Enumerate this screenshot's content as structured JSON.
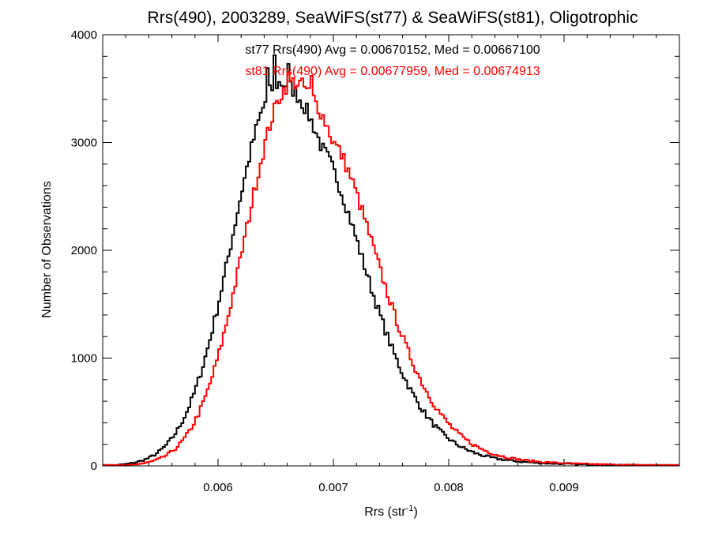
{
  "chart_data": {
    "type": "histogram-step",
    "title": "Rrs(490), 2003289, SeaWiFS(st77) & SeaWiFS(st81), Oligotrophic",
    "xlabel": {
      "base": "Rrs (str",
      "sup": "-1",
      "tail": ")"
    },
    "ylabel": "Number of Observations",
    "xlim": [
      0.005,
      0.01
    ],
    "ylim": [
      0,
      4000
    ],
    "x_ticks": [
      {
        "value": 0.006,
        "label": "0.006"
      },
      {
        "value": 0.007,
        "label": "0.007"
      },
      {
        "value": 0.008,
        "label": "0.008"
      },
      {
        "value": 0.009,
        "label": "0.009"
      }
    ],
    "y_ticks": [
      {
        "value": 0,
        "label": "0"
      },
      {
        "value": 1000,
        "label": "1000"
      },
      {
        "value": 2000,
        "label": "2000"
      },
      {
        "value": 3000,
        "label": "3000"
      },
      {
        "value": 4000,
        "label": "4000"
      }
    ],
    "bin_width": 2e-05,
    "series": [
      {
        "color": "#000000",
        "annotation": "st77 Rrs(490) Avg = 0.00670152, Med = 0.00667100",
        "mean": 0.00670152,
        "shape": {
          "peak": 3550,
          "center": 0.00654,
          "sigma_left": 0.00041,
          "sigma_right": 0.00059,
          "tail_amp": 520,
          "tail_decay": 0.00062,
          "tail_start": 0.0069,
          "noise": 75,
          "spikes": [
            [
              0.0065,
              3810
            ],
            [
              0.0066,
              3730
            ],
            [
              0.00642,
              3690
            ]
          ]
        }
      },
      {
        "color": "#ff0000",
        "annotation": "st81 Rrs(490) Avg = 0.00677959, Med = 0.00674913",
        "mean": 0.00677959,
        "shape": {
          "peak": 3560,
          "center": 0.00665,
          "sigma_left": 0.00041,
          "sigma_right": 0.0006,
          "tail_amp": 530,
          "tail_decay": 0.00064,
          "tail_start": 0.007,
          "noise": 75,
          "spikes": [
            [
              0.0066,
              3650
            ],
            [
              0.00682,
              3620
            ]
          ]
        }
      }
    ]
  }
}
